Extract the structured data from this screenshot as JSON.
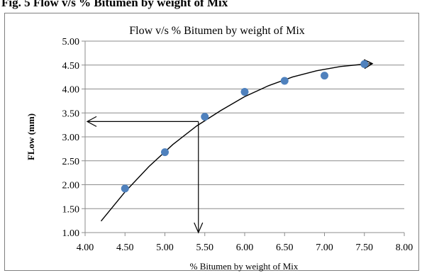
{
  "top_caption": "Fig. 5 Flow v/s % Bitumen by weight of Mix",
  "chart_data": {
    "type": "scatter",
    "title": "Flow v/s % Bitumen by weight of Mix",
    "xlabel": "% Bitumen by weight of Mix",
    "ylabel": "FLow (mm)",
    "xlim": [
      4.0,
      8.0
    ],
    "ylim": [
      1.0,
      5.0
    ],
    "x_ticks": [
      "4.00",
      "4.50",
      "5.00",
      "5.50",
      "6.00",
      "6.50",
      "7.00",
      "7.50",
      "8.00"
    ],
    "y_ticks": [
      "1.00",
      "1.50",
      "2.00",
      "2.50",
      "3.00",
      "3.50",
      "4.00",
      "4.50",
      "5.00"
    ],
    "grid": "horizontal",
    "legend": "none",
    "point_color": "#4f81bd",
    "series": [
      {
        "x": [
          4.5,
          5.0,
          5.5,
          6.0,
          6.5,
          7.0,
          7.5
        ],
        "y": [
          1.92,
          2.68,
          3.42,
          3.94,
          4.17,
          4.28,
          4.52
        ]
      }
    ],
    "trendline": {
      "x": [
        4.2,
        4.5,
        4.8,
        5.1,
        5.4,
        5.7,
        6.0,
        6.3,
        6.6,
        6.9,
        7.2,
        7.5,
        7.6
      ],
      "y": [
        1.24,
        1.85,
        2.38,
        2.84,
        3.23,
        3.55,
        3.84,
        4.07,
        4.25,
        4.38,
        4.47,
        4.52,
        4.53
      ]
    },
    "annotation": {
      "x": 5.42,
      "y": 3.32
    }
  }
}
